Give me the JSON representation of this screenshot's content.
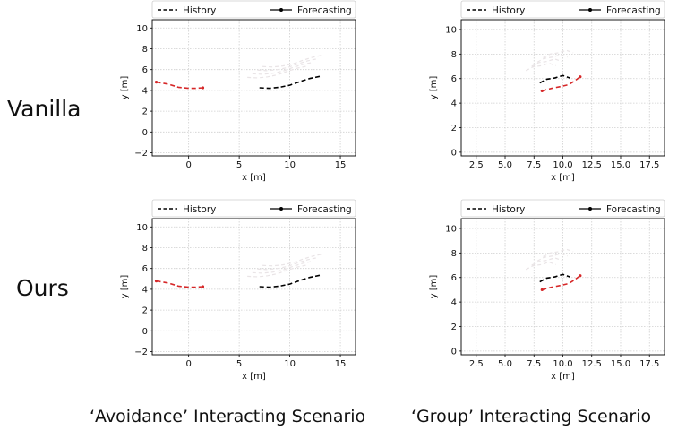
{
  "labels": {
    "rows": [
      "Vanilla",
      "Ours"
    ],
    "captions": [
      "‘Avoidance’ Interacting Scenario",
      "‘Group’ Interacting Scenario"
    ]
  },
  "colors": {
    "history": "#000000",
    "forecast": "#d62728",
    "grid": "#cfcfcf",
    "ghost": "#e9e4e6"
  },
  "chart_data": [
    {
      "type": "line",
      "panel": "vanilla-avoidance",
      "xlabel": "x [m]",
      "ylabel": "y [m]",
      "xlim": [
        -3.6,
        16.5
      ],
      "ylim": [
        -2.3,
        10.8
      ],
      "xticks": [
        0,
        5,
        10,
        15
      ],
      "yticks": [
        -2,
        0,
        2,
        4,
        6,
        8,
        10
      ],
      "grid": true,
      "legend_position": "top",
      "legend": [
        "History",
        "Forecasting"
      ],
      "series": [
        {
          "role": "history",
          "x": [
            7,
            8,
            9,
            10,
            11,
            12,
            13
          ],
          "y": [
            4.25,
            4.2,
            4.3,
            4.5,
            4.85,
            5.15,
            5.35
          ]
        },
        {
          "role": "forecast",
          "x": [
            -3.2,
            -2,
            -1,
            0,
            0.7,
            1.4
          ],
          "y": [
            4.8,
            4.6,
            4.3,
            4.2,
            4.2,
            4.25
          ]
        }
      ]
    },
    {
      "type": "line",
      "panel": "vanilla-group",
      "xlabel": "x [m]",
      "ylabel": "y [m]",
      "xlim": [
        1.2,
        18.8
      ],
      "ylim": [
        -0.3,
        10.8
      ],
      "xticks": [
        2.5,
        5.0,
        7.5,
        10.0,
        12.5,
        15.0,
        17.5
      ],
      "yticks": [
        0,
        2,
        4,
        6,
        8,
        10
      ],
      "grid": true,
      "legend_position": "top",
      "legend": [
        "History",
        "Forecasting"
      ],
      "series": [
        {
          "role": "history",
          "x": [
            8,
            8.6,
            9.3,
            10,
            10.6
          ],
          "y": [
            5.65,
            5.95,
            6.05,
            6.25,
            6.05
          ]
        },
        {
          "role": "forecast",
          "x": [
            8.2,
            9,
            9.8,
            10.5,
            11,
            11.5
          ],
          "y": [
            5,
            5.2,
            5.35,
            5.5,
            5.8,
            6.15
          ]
        }
      ]
    },
    {
      "type": "line",
      "panel": "ours-avoidance",
      "xlabel": "x [m]",
      "ylabel": "y [m]",
      "xlim": [
        -3.6,
        16.5
      ],
      "ylim": [
        -2.3,
        10.8
      ],
      "xticks": [
        0,
        5,
        10,
        15
      ],
      "yticks": [
        -2,
        0,
        2,
        4,
        6,
        8,
        10
      ],
      "grid": true,
      "legend_position": "top",
      "legend": [
        "History",
        "Forecasting"
      ],
      "series": [
        {
          "role": "history",
          "x": [
            7,
            8,
            9,
            10,
            11,
            12,
            13
          ],
          "y": [
            4.25,
            4.2,
            4.3,
            4.5,
            4.85,
            5.15,
            5.35
          ]
        },
        {
          "role": "forecast",
          "x": [
            -3.2,
            -2,
            -1,
            0,
            0.7,
            1.4
          ],
          "y": [
            4.8,
            4.6,
            4.3,
            4.2,
            4.2,
            4.25
          ]
        }
      ]
    },
    {
      "type": "line",
      "panel": "ours-group",
      "xlabel": "x [m]",
      "ylabel": "y [m]",
      "xlim": [
        1.2,
        18.8
      ],
      "ylim": [
        -0.3,
        10.8
      ],
      "xticks": [
        2.5,
        5.0,
        7.5,
        10.0,
        12.5,
        15.0,
        17.5
      ],
      "yticks": [
        0,
        2,
        4,
        6,
        8,
        10
      ],
      "grid": true,
      "legend_position": "top",
      "legend": [
        "History",
        "Forecasting"
      ],
      "series": [
        {
          "role": "history",
          "x": [
            8,
            8.6,
            9.3,
            10,
            10.6
          ],
          "y": [
            5.65,
            5.95,
            6.05,
            6.25,
            6.05
          ]
        },
        {
          "role": "forecast",
          "x": [
            8.2,
            9,
            9.8,
            10.5,
            11,
            11.5
          ],
          "y": [
            5,
            5.2,
            5.35,
            5.5,
            5.8,
            6.15
          ]
        }
      ]
    }
  ]
}
